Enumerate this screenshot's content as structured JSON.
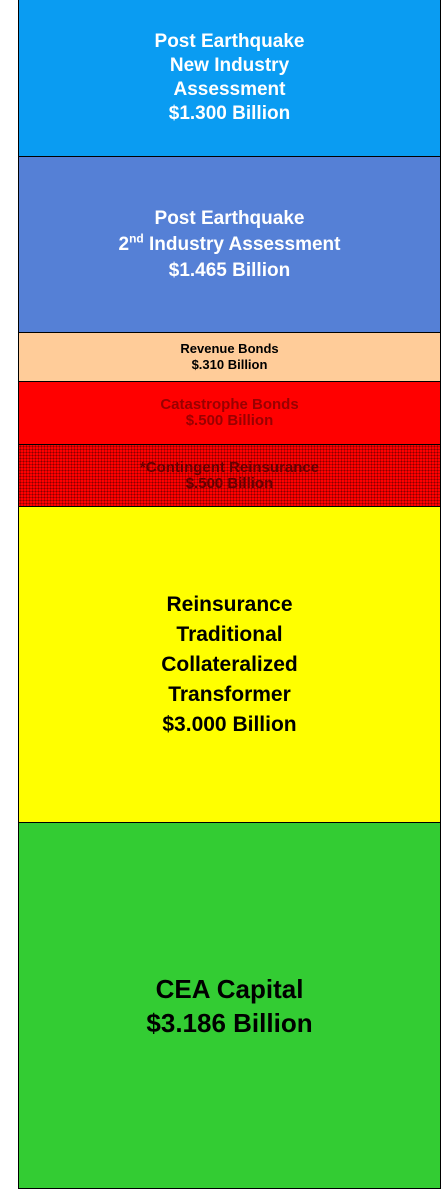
{
  "blocks": [
    {
      "lines": [
        "Post Earthquake",
        "New Industry",
        "Assessment",
        "$1.300 Billion"
      ]
    },
    {
      "lines": [
        "Post Earthquake",
        [
          "2",
          "nd",
          " Industry Assessment"
        ],
        "$1.465 Billion"
      ]
    },
    {
      "lines": [
        "Revenue Bonds",
        "$.310 Billion"
      ]
    },
    {
      "lines": [
        "Catastrophe Bonds",
        "$.500 Billion"
      ]
    },
    {
      "lines": [
        "*Contingent Reinsurance",
        "$.500 Billion"
      ]
    },
    {
      "lines": [
        "Reinsurance",
        "Traditional",
        "Collateralized",
        "Transformer",
        "$3.000 Billion"
      ]
    },
    {
      "lines": [
        "CEA Capital",
        "$3.186 Billion"
      ]
    }
  ]
}
